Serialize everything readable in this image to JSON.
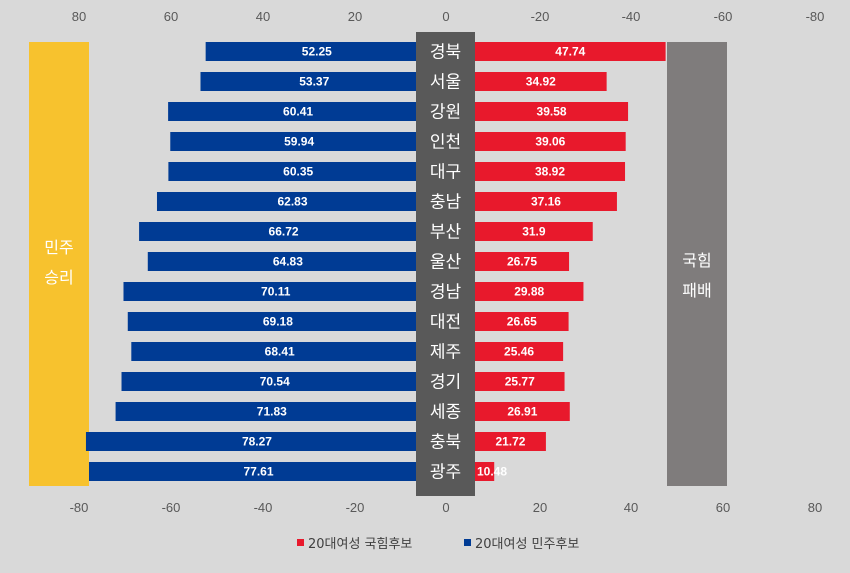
{
  "chart_data": {
    "type": "bar",
    "orientation": "horizontal",
    "layout": "diverging",
    "categories": [
      "경북",
      "서울",
      "강원",
      "인천",
      "대구",
      "충남",
      "부산",
      "울산",
      "경남",
      "대전",
      "제주",
      "경기",
      "세종",
      "충북",
      "광주"
    ],
    "series": [
      {
        "name": "20대여성 민주후보",
        "color": "#003b94",
        "side": "left",
        "values": [
          52.25,
          53.37,
          60.41,
          59.94,
          60.35,
          62.83,
          66.72,
          64.83,
          70.11,
          69.18,
          68.41,
          70.54,
          71.83,
          78.27,
          77.61
        ]
      },
      {
        "name": "20대여성 국힘후보",
        "color": "#e8192c",
        "side": "right",
        "values": [
          47.74,
          34.92,
          39.58,
          39.06,
          38.92,
          37.16,
          31.9,
          26.75,
          29.88,
          26.65,
          25.46,
          25.77,
          26.91,
          21.72,
          10.48
        ]
      }
    ],
    "top_ticks": [
      "80",
      "60",
      "40",
      "20",
      "0",
      "-20",
      "-40",
      "-60",
      "-80"
    ],
    "bottom_ticks": [
      "-80",
      "-60",
      "-40",
      "-20",
      "0",
      "20",
      "40",
      "60",
      "80"
    ],
    "xlim": [
      -80,
      80
    ],
    "grid": false,
    "legend_position": "bottom",
    "legend": [
      "20대여성 국힘후보",
      "20대여성 민주후보"
    ],
    "annotations": {
      "left_box": {
        "lines": [
          "민주",
          "승리"
        ],
        "color": "#f7c22e"
      },
      "right_box": {
        "lines": [
          "국힘",
          "패배"
        ],
        "color": "#7f7c7c"
      },
      "center_band_color": "#595959"
    }
  }
}
